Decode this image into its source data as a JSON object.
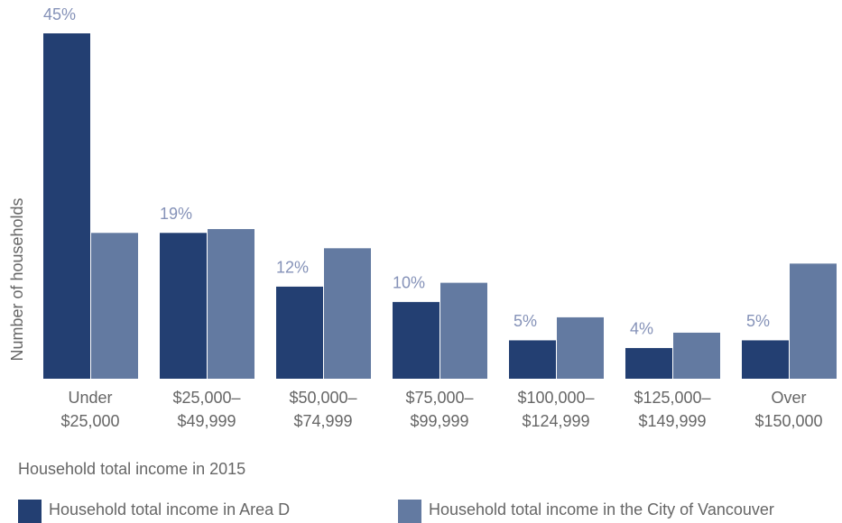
{
  "chart_data": {
    "type": "bar",
    "y_label": "Number of households",
    "x_label": "Household total income in 2015",
    "categories": [
      [
        "Under",
        "$25,000"
      ],
      [
        "$25,000–",
        "$49,999"
      ],
      [
        "$50,000–",
        "$74,999"
      ],
      [
        "$75,000–",
        "$99,999"
      ],
      [
        "$100,000–",
        "$124,999"
      ],
      [
        "$125,000–",
        "$149,999"
      ],
      [
        "Over",
        "$150,000"
      ]
    ],
    "series": [
      {
        "name": "Household total income in Area D",
        "color": "#233f72",
        "values": [
          45,
          19,
          12,
          10,
          5,
          4,
          5
        ],
        "value_labels": [
          "45%",
          "19%",
          "12%",
          "10%",
          "5%",
          "4%",
          "5%"
        ]
      },
      {
        "name": "Household total income in the City of Vancouver",
        "color": "#637aa1",
        "values": [
          19,
          19.5,
          17,
          12.5,
          8,
          6,
          15
        ]
      }
    ]
  }
}
